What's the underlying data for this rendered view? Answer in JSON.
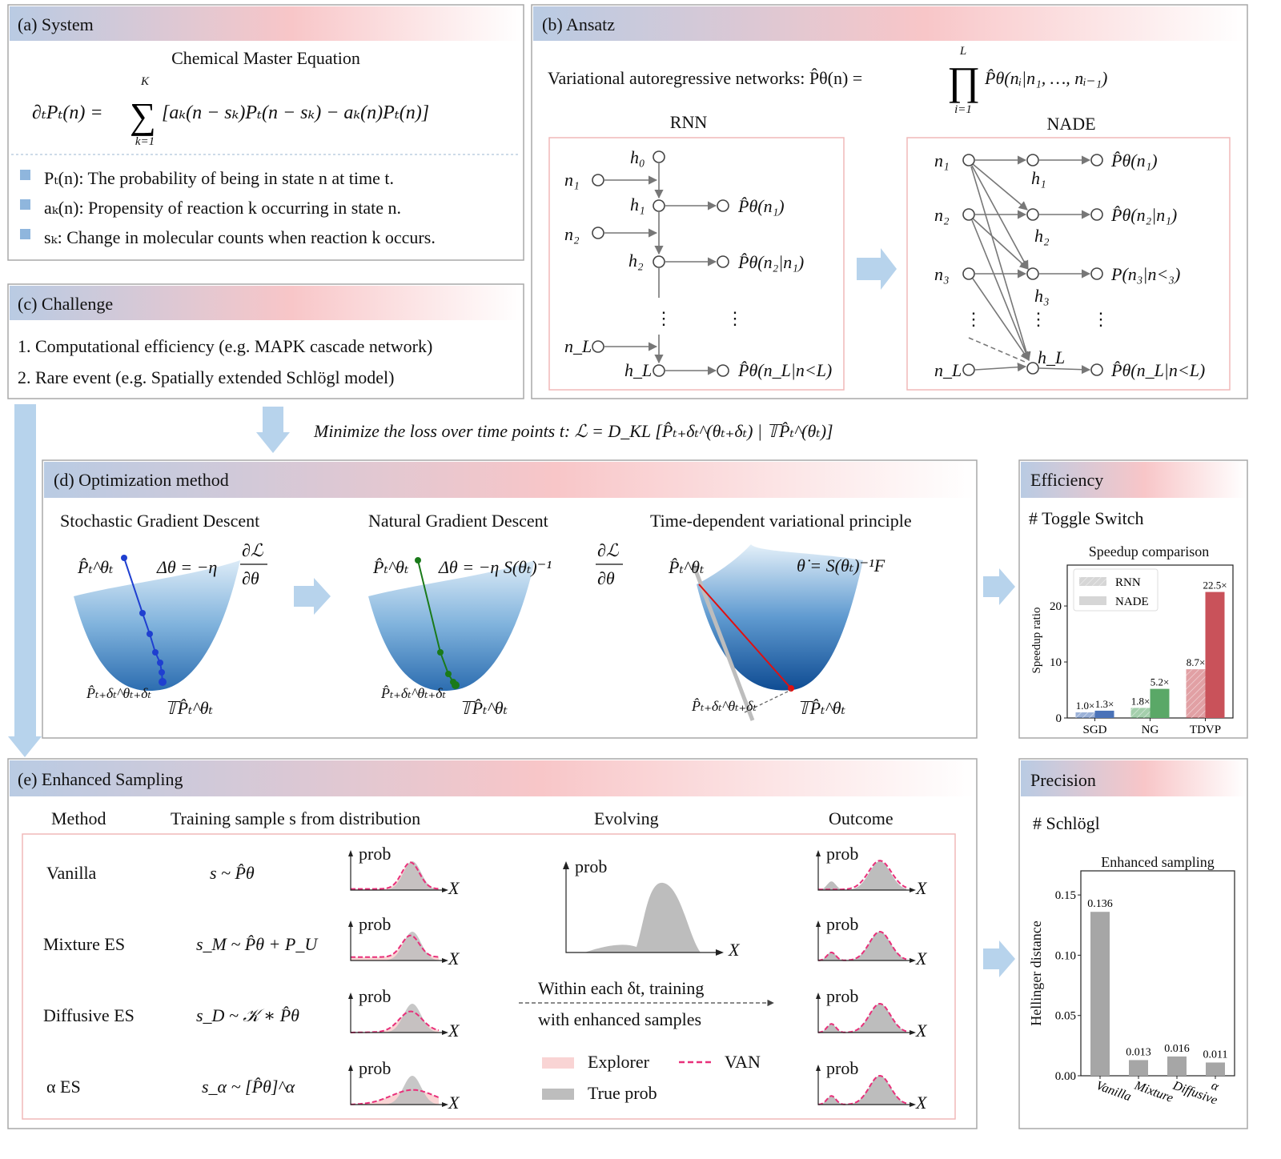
{
  "panel_a": {
    "title": "(a) System",
    "eq_title": "Chemical Master Equation",
    "eq_lhs": "∂ₜPₜ(n) =",
    "sum": "∑",
    "sum_top": "K",
    "sum_bottom": "k=1",
    "eq_rhs": "[aₖ(n − sₖ)Pₜ(n − sₖ) − aₖ(n)Pₜ(n)]",
    "bullets": [
      "Pₜ(n): The probability of being in state n at time t.",
      "aₖ(n): Propensity of reaction k occurring in state n.",
      "sₖ: Change in molecular counts when reaction k occurs."
    ]
  },
  "panel_b": {
    "title": "(b) Ansatz",
    "formula_lead": "Variational autoregressive networks:  P̂θ(n) =",
    "prod": "∏",
    "prod_top": "L",
    "prod_bottom": "i=1",
    "formula_tail": "P̂θ(nᵢ|n₁, …, nᵢ₋₁)",
    "rnn": {
      "label": "RNN",
      "h0": "h₀",
      "n1": "n₁",
      "h1": "h₁",
      "o1": "P̂θ(n₁)",
      "n2": "n₂",
      "h2": "h₂",
      "o2": "P̂θ(n₂|n₁)",
      "nL": "n_L",
      "hL": "h_L",
      "oL": "P̂θ(n_L|n<L)",
      "dots": "⋮"
    },
    "nade": {
      "label": "NADE",
      "n1": "n₁",
      "n2": "n₂",
      "n3": "n₃",
      "nL": "n_L",
      "h1": "h₁",
      "h2": "h₂",
      "h3": "h₃",
      "hL": "h_L",
      "o1": "P̂θ(n₁)",
      "o2": "P̂θ(n₂|n₁)",
      "o3": "P(n₃|n<₃)",
      "oL": "P̂θ(n_L|n<L)",
      "dots": "⋮"
    }
  },
  "panel_c": {
    "title": "(c) Challenge",
    "items": [
      "1. Computational efficiency (e.g. MAPK cascade network)",
      "2. Rare event (e.g. Spatially extended Schlögl model)"
    ]
  },
  "loss": {
    "text": "Minimize the loss over time points t:  ℒ = D_KL [P̂ₜ₊δₜ^(θₜ₊δₜ) | 𝕋P̂ₜ^(θₜ)]"
  },
  "panel_d": {
    "title": "(d) Optimization method",
    "methods": [
      {
        "name": "Stochastic Gradient Descent",
        "formula": "Δθ = −η",
        "frac_num": "∂ℒ",
        "frac_den": "∂θ",
        "p_top": "P̂ₜ^θₜ",
        "p_next": "P̂ₜ₊δₜ^θₜ₊δₜ",
        "p_target": "𝕋P̂ₜ^θₜ"
      },
      {
        "name": "Natural Gradient Descent",
        "formula": "Δθ = −η S(θₜ)⁻¹",
        "frac_num": "∂ℒ",
        "frac_den": "∂θ",
        "p_top": "P̂ₜ^θₜ",
        "p_next": "P̂ₜ₊δₜ^θₜ₊δₜ",
        "p_target": "𝕋P̂ₜ^θₜ"
      },
      {
        "name": "Time-dependent variational principle",
        "formula": "θ̇ = S(θₜ)⁻¹F",
        "p_top": "P̂ₜ^θₜ",
        "p_next": "P̂ₜ₊δₜ^θₜ₊δₜ",
        "p_target": "𝕋P̂ₜ^θₜ"
      }
    ],
    "colors": {
      "sgd": "#1f3fd0",
      "ngd": "#1a7a1a",
      "tdvp": "#e01010"
    }
  },
  "efficiency": {
    "title": "Efficiency",
    "subtitle": "# Toggle Switch"
  },
  "panel_e": {
    "title": "(e) Enhanced Sampling",
    "headers": {
      "method": "Method",
      "training": "Training sample s from distribution",
      "evolving": "Evolving",
      "outcome": "Outcome"
    },
    "rows": [
      {
        "method": "Vanilla",
        "formula": "s ~ P̂θ"
      },
      {
        "method": "Mixture ES",
        "formula": "s_M ~ P̂θ + P_U"
      },
      {
        "method": "Diffusive ES",
        "formula": "s_D ~ 𝒦 ∗ P̂θ"
      },
      {
        "method": "α ES",
        "formula": "s_α ~ [P̂θ]^α"
      }
    ],
    "axis_y": "prob",
    "axis_x": "X",
    "evolve_line1": "Within each δt, training",
    "evolve_line2": "with enhanced samples",
    "legend": {
      "explorer": "Explorer",
      "van": "VAN",
      "true_prob": "True prob"
    },
    "colors": {
      "explorer": "#f9d4d4",
      "van": "#e8307a",
      "true": "#bdbdbd"
    }
  },
  "precision": {
    "title": "Precision",
    "subtitle": "# Schlögl"
  },
  "chart_data": [
    {
      "type": "bar",
      "title": "Speedup comparison",
      "ylabel": "Speedup ratio",
      "xlabel": "",
      "categories": [
        "SGD",
        "NG",
        "TDVP"
      ],
      "series": [
        {
          "name": "RNN",
          "values": [
            1.0,
            1.8,
            8.7
          ],
          "labels": [
            "1.0×",
            "1.8×",
            "8.7×"
          ],
          "hatched": true
        },
        {
          "name": "NADE",
          "values": [
            1.3,
            5.2,
            22.5
          ],
          "labels": [
            "1.3×",
            "5.2×",
            "22.5×"
          ],
          "hatched": false
        }
      ],
      "category_colors": [
        "#4a72b8",
        "#5aa867",
        "#c9525a"
      ],
      "yticks": [
        0,
        10,
        20
      ],
      "ylim": [
        0,
        27.3
      ],
      "legend": "top-left"
    },
    {
      "type": "bar",
      "title": "Enhanced sampling",
      "ylabel": "Hellinger distance",
      "xlabel": "",
      "categories": [
        "Vanilla",
        "Mixture",
        "Diffusive",
        "α"
      ],
      "values": [
        0.136,
        0.013,
        0.016,
        0.011
      ],
      "labels": [
        "0.136",
        "0.013",
        "0.016",
        "0.011"
      ],
      "yticks": [
        "0.00",
        "0.05",
        "0.10",
        "0.15"
      ],
      "ylim": [
        0,
        0.17
      ],
      "color": "#a6a6a6"
    }
  ]
}
